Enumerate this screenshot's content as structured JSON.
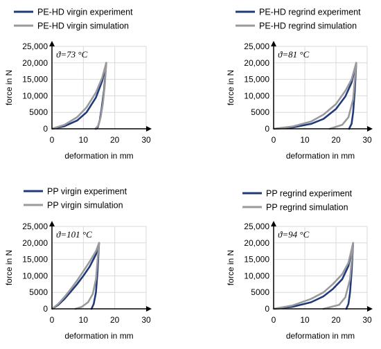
{
  "colors": {
    "experiment": "#1f3a7a",
    "simulation": "#9a9a9a",
    "grid": "#d9d9d9",
    "axis": "#000000"
  },
  "chart_data": [
    {
      "type": "line",
      "annotation": "ϑ=73 °C",
      "xlabel": "deformation in mm",
      "ylabel": "force in N",
      "xlim": [
        0,
        30
      ],
      "ylim": [
        0,
        25000
      ],
      "xticks": [
        "0",
        "10",
        "20",
        "30"
      ],
      "yticks": [
        "0",
        "5000",
        "10,000",
        "15,000",
        "20,000",
        "25,000"
      ],
      "grid": true,
      "legend_position": "top",
      "series": [
        {
          "name": "PE-HD virgin experiment",
          "style": "experiment",
          "x": [
            0,
            4,
            8,
            11,
            14,
            16,
            17.3,
            16.6,
            15.8,
            15.2,
            14.6,
            14
          ],
          "y": [
            0,
            800,
            2500,
            5000,
            9500,
            14500,
            20000,
            12000,
            6000,
            2500,
            500,
            0
          ]
        },
        {
          "name": "PE-HD virgin simulation",
          "style": "simulation",
          "x": [
            0,
            4,
            8,
            11,
            14,
            16,
            17.3,
            16.8,
            16.2,
            15.5,
            14.8,
            13.8
          ],
          "y": [
            0,
            1200,
            3500,
            6500,
            11000,
            15500,
            20000,
            13000,
            7500,
            3500,
            1000,
            0
          ]
        }
      ]
    },
    {
      "type": "line",
      "annotation": "ϑ=81 °C",
      "xlabel": "deformation in mm",
      "ylabel": "force in N",
      "xlim": [
        0,
        30
      ],
      "ylim": [
        0,
        25000
      ],
      "xticks": [
        "0",
        "10",
        "20",
        "30"
      ],
      "yticks": [
        "0",
        "5000",
        "10,000",
        "15,000",
        "20,000",
        "25,000"
      ],
      "grid": true,
      "legend_position": "top",
      "series": [
        {
          "name": "PE-HD regrind experiment",
          "style": "experiment",
          "x": [
            0,
            6,
            12,
            16,
            20,
            23,
            25,
            26.5,
            26,
            25.5,
            25,
            24.2
          ],
          "y": [
            0,
            400,
            1500,
            3000,
            6000,
            9800,
            14000,
            20000,
            11000,
            5000,
            1500,
            0
          ]
        },
        {
          "name": "PE-HD regrind simulation",
          "style": "simulation",
          "x": [
            0,
            6,
            12,
            16,
            20,
            23,
            25,
            26.5,
            25.5,
            24,
            22,
            18
          ],
          "y": [
            0,
            700,
            2200,
            4300,
            7500,
            11500,
            15000,
            20000,
            9000,
            3500,
            1200,
            0
          ]
        }
      ]
    },
    {
      "type": "line",
      "annotation": "ϑ=101 °C",
      "xlabel": "deformation in mm",
      "ylabel": "force in N",
      "xlim": [
        0,
        30
      ],
      "ylim": [
        0,
        25000
      ],
      "xticks": [
        "0",
        "10",
        "20",
        "30"
      ],
      "yticks": [
        "0",
        "5000",
        "10,000",
        "15,000",
        "20,000",
        "25,000"
      ],
      "grid": true,
      "legend_position": "top",
      "series": [
        {
          "name": "PP virgin experiment",
          "style": "experiment",
          "x": [
            0,
            2,
            4,
            6,
            8,
            10,
            12,
            14,
            15,
            14.5,
            14,
            13.3,
            12.6
          ],
          "y": [
            0,
            1200,
            3000,
            5200,
            7500,
            10000,
            12800,
            16500,
            20000,
            11000,
            5000,
            1500,
            0
          ]
        },
        {
          "name": "PP virgin simulation",
          "style": "simulation",
          "x": [
            0,
            2,
            4,
            6,
            8,
            10,
            12,
            14,
            15,
            14,
            13,
            11.5,
            9.5,
            7.5
          ],
          "y": [
            0,
            1500,
            3600,
            6000,
            8600,
            11400,
            14300,
            17500,
            20000,
            9000,
            4500,
            2000,
            600,
            0
          ]
        }
      ]
    },
    {
      "type": "line",
      "annotation": "ϑ=94 °C",
      "xlabel": "deformation in mm",
      "ylabel": "force in N",
      "xlim": [
        0,
        30
      ],
      "ylim": [
        0,
        25000
      ],
      "xticks": [
        "0",
        "10",
        "20",
        "30"
      ],
      "yticks": [
        "0",
        "5000",
        "10,000",
        "15,000",
        "20,000",
        "25,000"
      ],
      "grid": true,
      "legend_position": "top",
      "series": [
        {
          "name": "PP regrind experiment",
          "style": "experiment",
          "x": [
            0,
            6,
            12,
            16,
            19,
            22,
            24,
            25.5,
            25,
            24.5,
            24,
            23.3
          ],
          "y": [
            0,
            600,
            2000,
            3800,
            6000,
            9000,
            13000,
            20000,
            11000,
            5000,
            1500,
            0
          ]
        },
        {
          "name": "PP regrind simulation",
          "style": "simulation",
          "x": [
            0,
            6,
            12,
            16,
            19,
            22,
            24,
            25.5,
            24.5,
            23,
            21,
            16
          ],
          "y": [
            0,
            1000,
            3000,
            5000,
            7500,
            10500,
            14000,
            20000,
            9000,
            3500,
            1200,
            0
          ]
        }
      ]
    }
  ]
}
